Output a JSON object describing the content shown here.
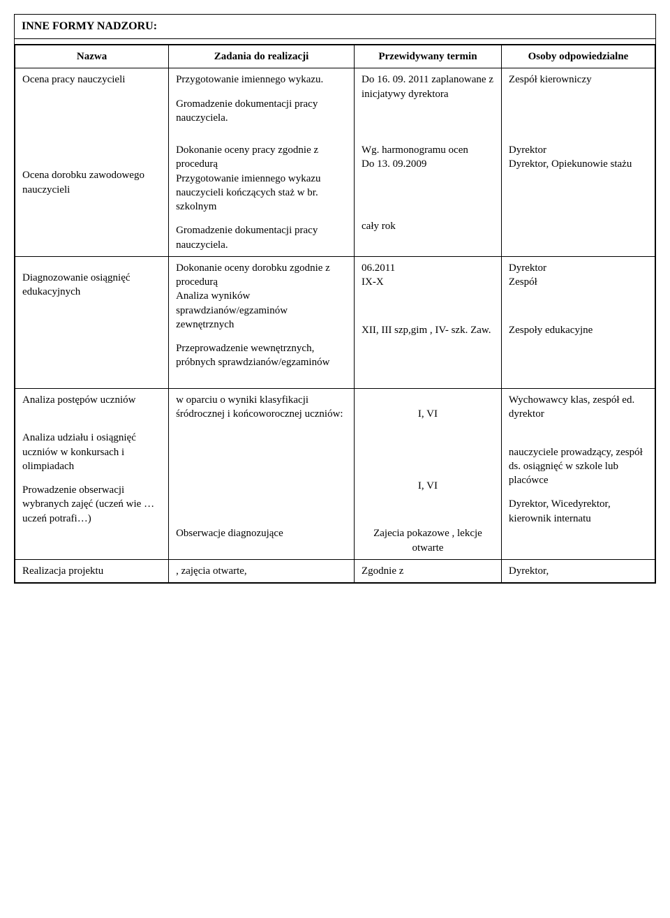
{
  "title": "INNE FORMY NADZORU:",
  "headers": {
    "col1": "Nazwa",
    "col2": "Zadania do realizacji",
    "col3": "Przewidywany termin",
    "col4": "Osoby odpowiedzialne"
  },
  "r1": {
    "nazwa": "Ocena pracy nauczycieli",
    "zad_p1": "Przygotowanie imiennego wykazu.",
    "zad_p2": "Gromadzenie dokumentacji pracy nauczyciela.",
    "termin": "Do 16. 09. 2011 zaplanowane z inicjatywy dyrektora",
    "osoby": "Zespół kierowniczy"
  },
  "r2": {
    "nazwa": "Ocena dorobku zawodowego nauczycieli",
    "zad_p1": "Dokonanie oceny pracy zgodnie z procedurą",
    "zad_p2": "Przygotowanie imiennego wykazu nauczycieli kończących staż w br. szkolnym",
    "zad_p3": "Gromadzenie dokumentacji pracy nauczyciela.",
    "termin_p1": "Wg. harmonogramu ocen",
    "termin_p2": "Do 13. 09.2009",
    "termin_p3": "cały rok",
    "osoby_p1": "Dyrektor",
    "osoby_p2": "Dyrektor, Opiekunowie stażu"
  },
  "r3": {
    "nazwa": "Diagnozowanie osiągnięć edukacyjnych",
    "zad_p1": "Dokonanie oceny dorobku zgodnie z procedurą",
    "zad_p2": "Analiza wyników sprawdzianów/egzaminów zewnętrznych",
    "zad_p3": "Przeprowadzenie wewnętrznych, próbnych sprawdzianów/egzaminów",
    "termin_p1": "06.2011",
    "termin_p2": "IX-X",
    "termin_p3": "XII,  III szp,gim , IV- szk. Zaw.",
    "osoby_p1": "Dyrektor",
    "osoby_p2": "Zespół",
    "osoby_p3": "Zespoły edukacyjne"
  },
  "r4": {
    "nazwa_p1": "Analiza postępów uczniów",
    "nazwa_p2": "Analiza udziału i osiągnięć uczniów w konkursach i olimpiadach",
    "nazwa_p3": "Prowadzenie obserwacji wybranych zajęć (uczeń wie … uczeń potrafi…)",
    "zad_p1": "w oparciu o wyniki klasyfikacji śródrocznej i końcoworocznej uczniów:",
    "zad_p2": "Obserwacje diagnozujące",
    "termin_p1": "I, VI",
    "termin_p2": "I, VI",
    "termin_p3": "Zajecia pokazowe , lekcje otwarte",
    "osoby_p1": "Wychowawcy klas, zespół ed. dyrektor",
    "osoby_p2": "nauczyciele prowadzący, zespół ds. osiągnięć w szkole lub placówce",
    "osoby_p3": "Dyrektor, Wicedyrektor, kierownik internatu"
  },
  "r5": {
    "nazwa": "Realizacja projektu",
    "zad": ", zajęcia otwarte,",
    "termin": "Zgodnie z",
    "osoby": "Dyrektor,"
  }
}
